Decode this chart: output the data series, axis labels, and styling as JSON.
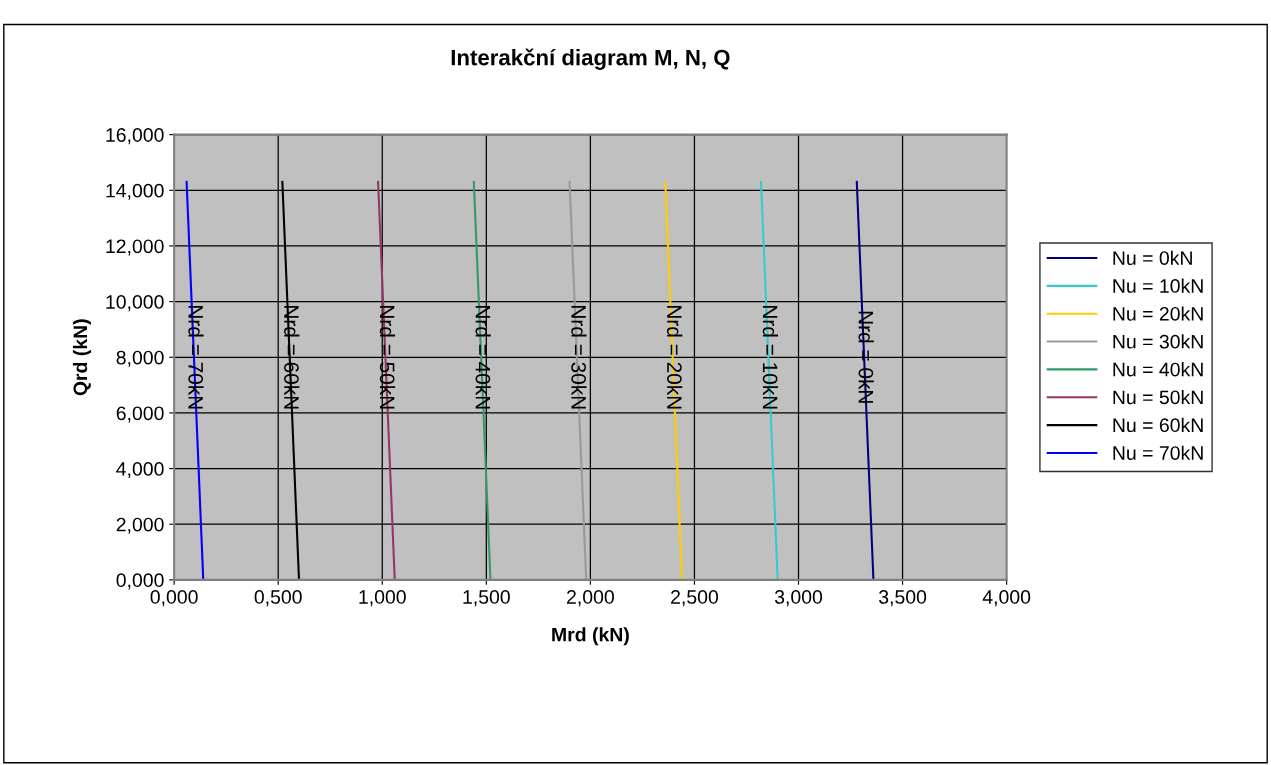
{
  "chart_data": {
    "type": "line",
    "title": "Interakční diagram M, N, Q",
    "xlabel": "Mrd (kN)",
    "ylabel": "Qrd (kN)",
    "xlim": [
      0,
      4
    ],
    "ylim": [
      0,
      16
    ],
    "xticks": [
      {
        "value": 0,
        "label": "0,000"
      },
      {
        "value": 0.5,
        "label": "0,500"
      },
      {
        "value": 1,
        "label": "1,000"
      },
      {
        "value": 1.5,
        "label": "1,500"
      },
      {
        "value": 2,
        "label": "2,000"
      },
      {
        "value": 2.5,
        "label": "2,500"
      },
      {
        "value": 3,
        "label": "3,000"
      },
      {
        "value": 3.5,
        "label": "3,500"
      },
      {
        "value": 4,
        "label": "4,000"
      }
    ],
    "yticks": [
      {
        "value": 0,
        "label": "0,000"
      },
      {
        "value": 2,
        "label": "2,000"
      },
      {
        "value": 4,
        "label": "4,000"
      },
      {
        "value": 6,
        "label": "6,000"
      },
      {
        "value": 8,
        "label": "8,000"
      },
      {
        "value": 10,
        "label": "10,000"
      },
      {
        "value": 12,
        "label": "12,000"
      },
      {
        "value": 14,
        "label": "14,000"
      },
      {
        "value": 16,
        "label": "16,000"
      }
    ],
    "grid": true,
    "legend": "right",
    "marker": "none",
    "line_style": "solid",
    "series": [
      {
        "name": "Nu = 0kN",
        "color": "#000080",
        "x": [
          3.28,
          3.36
        ],
        "values": [
          14.3,
          0
        ]
      },
      {
        "name": "Nu = 10kN",
        "color": "#33cccc",
        "x": [
          2.82,
          2.9
        ],
        "values": [
          14.3,
          0
        ]
      },
      {
        "name": "Nu = 20kN",
        "color": "#ffcc00",
        "x": [
          2.36,
          2.44
        ],
        "values": [
          14.3,
          0
        ]
      },
      {
        "name": "Nu = 30kN",
        "color": "#999999",
        "x": [
          1.9,
          1.98
        ],
        "values": [
          14.3,
          0
        ]
      },
      {
        "name": "Nu = 40kN",
        "color": "#339966",
        "x": [
          1.44,
          1.52
        ],
        "values": [
          14.3,
          0
        ]
      },
      {
        "name": "Nu = 50kN",
        "color": "#993366",
        "x": [
          0.98,
          1.06
        ],
        "values": [
          14.3,
          0
        ]
      },
      {
        "name": "Nu = 60kN",
        "color": "#000000",
        "x": [
          0.52,
          0.6
        ],
        "values": [
          14.3,
          0
        ]
      },
      {
        "name": "Nu = 70kN",
        "color": "#0000ff",
        "x": [
          0.06,
          0.14
        ],
        "values": [
          14.3,
          0
        ]
      }
    ],
    "annotations": [
      {
        "text": "Nrd = 0kN",
        "x": 3.315,
        "y": 8
      },
      {
        "text": "Nrd = 10kN",
        "x": 2.855,
        "y": 8
      },
      {
        "text": "Nrd = 20kN",
        "x": 2.395,
        "y": 8
      },
      {
        "text": "Nrd = 30kN",
        "x": 1.935,
        "y": 8
      },
      {
        "text": "Nrd = 40kN",
        "x": 1.475,
        "y": 8
      },
      {
        "text": "Nrd = 50kN",
        "x": 1.015,
        "y": 8
      },
      {
        "text": "Nrd = 60kN",
        "x": 0.555,
        "y": 8
      },
      {
        "text": "Nrd = 70kN",
        "x": 0.095,
        "y": 8
      }
    ]
  }
}
